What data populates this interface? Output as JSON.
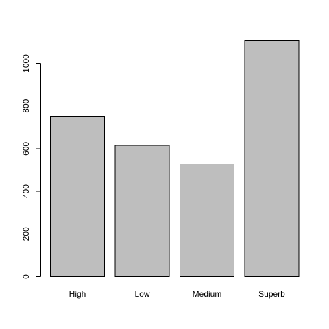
{
  "chart_data": {
    "type": "bar",
    "title": "",
    "xlabel": "",
    "ylabel": "",
    "categories": [
      "High",
      "Low",
      "Medium",
      "Superb"
    ],
    "values": [
      752,
      615,
      528,
      1106
    ],
    "ylim": [
      0,
      1200
    ],
    "yticks": [
      0,
      200,
      400,
      600,
      800,
      1000
    ],
    "ytick_labels": [
      "0",
      "200",
      "400",
      "600",
      "800",
      "1000"
    ],
    "bar_color": "#bebebe",
    "border_color": "#000000",
    "grid": false,
    "legend": "none"
  }
}
